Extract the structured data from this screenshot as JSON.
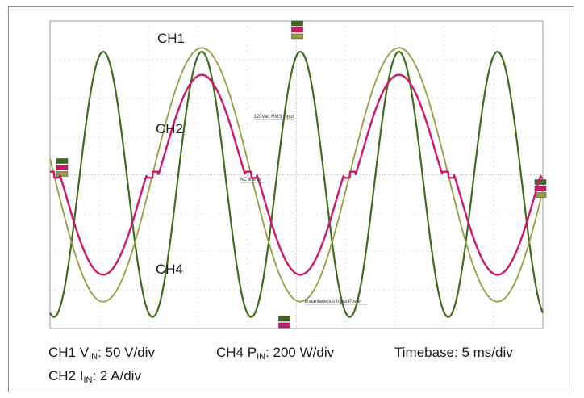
{
  "chart_data": {
    "type": "line",
    "grid": true,
    "grid_divisions": {
      "x": 10,
      "y": 8
    },
    "timebase_ms_per_div": 5,
    "x_range_ms": [
      0,
      50
    ],
    "series": [
      {
        "name": "CH1",
        "quantity": "VIN",
        "scale_per_div": 50,
        "unit": "V",
        "color": "#9a9a3e",
        "waveform": "sine",
        "period_ms": 20,
        "peak_divisions": 3.3,
        "peak_value_V": 165,
        "x_ms": [
          0,
          5.4,
          10.4,
          15.4,
          20.4,
          25.4,
          30.4,
          35.4,
          40.4,
          45.4,
          50.0
        ],
        "y_V": [
          -45,
          -165,
          0,
          165,
          0,
          -165,
          0,
          165,
          0,
          -165,
          0
        ]
      },
      {
        "name": "CH2",
        "quantity": "IIN",
        "scale_per_div": 2,
        "unit": "A",
        "color": "#d0166b",
        "waveform": "sine with zero-crossing flats",
        "peak_divisions": 2.6,
        "peak_value_A": 5.2,
        "x_ms": [
          0,
          2.0,
          5.4,
          9.0,
          11.0,
          15.4,
          19.0,
          21.4,
          25.4,
          29.0,
          31.4,
          35.4,
          39.0,
          41.4,
          45.4,
          49.0,
          50.0
        ],
        "y_A": [
          0,
          -0.8,
          -5.2,
          -0.8,
          0,
          5.2,
          0,
          0,
          -5.2,
          0,
          0,
          5.2,
          0,
          0,
          -5.2,
          0,
          0
        ]
      },
      {
        "name": "CH4",
        "quantity": "PIN",
        "scale_per_div": 200,
        "unit": "W",
        "color": "#3e6b1e",
        "waveform": "sine squared",
        "period_ms": 10,
        "peak_divisions": 3.2,
        "peak_value_W": 640,
        "reference_divisions_below_center": -3.7,
        "x_ms": [
          0,
          5.4,
          10.4,
          15.4,
          20.4,
          25.4,
          30.4,
          35.4,
          40.4,
          45.4,
          50.0
        ],
        "y_W": [
          -700,
          640,
          -700,
          640,
          -700,
          640,
          -700,
          640,
          -700,
          640,
          -700
        ]
      }
    ],
    "trace_labels": [
      "CH1",
      "CH2",
      "CH4"
    ],
    "annotations": [
      "120Vac RMS input",
      "AC line in",
      "Instantaneous Input Power"
    ],
    "captions": {
      "ch1": {
        "pre": "CH1 V",
        "sub": "IN",
        "post": ": 50 V/div"
      },
      "ch4": {
        "pre": "CH4 P",
        "sub": "IN",
        "post": ": 200 W/div"
      },
      "timebase": "Timebase: 5 ms/div",
      "ch2": {
        "pre": "CH2 I",
        "sub": "IN",
        "post": ": 2 A/div"
      }
    }
  }
}
